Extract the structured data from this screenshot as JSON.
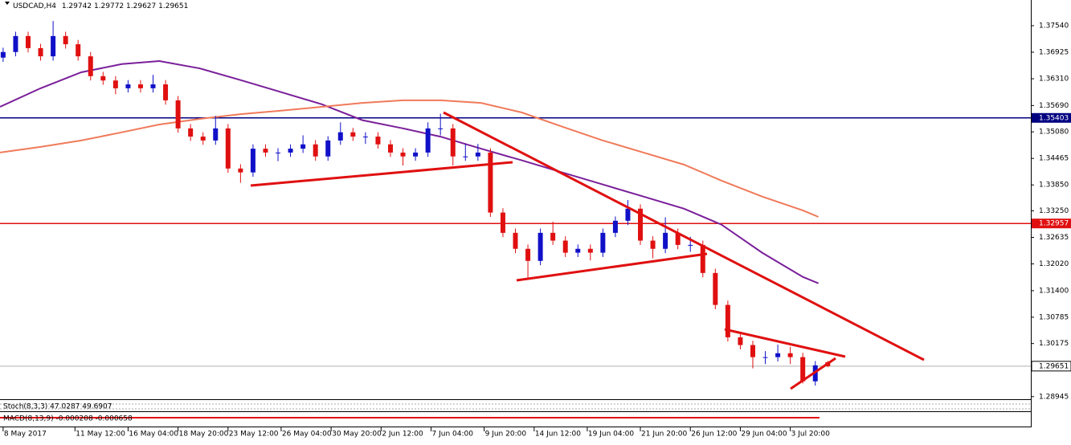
{
  "chart_data": {
    "type": "candlestick",
    "symbol": "USDCAD,H4",
    "up_color": "#1010c8",
    "down_color": "#e01010",
    "xlim": [
      0,
      330
    ],
    "ylim": [
      1.28885,
      1.38135
    ],
    "yticks": [
      {
        "value": 1.3754,
        "label": "1.37540"
      },
      1.36925,
      {
        "value": 1.3631,
        "label": "1.36310"
      },
      {
        "value": 1.3569,
        "label": "1.35690"
      },
      {
        "value": 1.3508,
        "label": "1.35080"
      },
      1.34465,
      {
        "value": 1.3385,
        "label": "1.33850"
      },
      {
        "value": 1.3325,
        "label": "1.33250"
      },
      1.32635,
      {
        "value": 1.3202,
        "label": "1.32020"
      },
      {
        "value": 1.314,
        "label": "1.31400"
      },
      1.30785,
      1.30175,
      1.28945
    ],
    "xticks": [
      {
        "value": 1,
        "label": "8 May 2017"
      },
      {
        "value": 24,
        "label": "11 May 12:00"
      },
      {
        "value": 41,
        "label": "16 May 04:00"
      },
      {
        "value": 57,
        "label": "18 May 20:00"
      },
      {
        "value": 73,
        "label": "23 May 12:00"
      },
      {
        "value": 90,
        "label": "26 May 04:00"
      },
      {
        "value": 106,
        "label": "30 May 20:00"
      },
      {
        "value": 122,
        "label": "2 Jun 12:00"
      },
      {
        "value": 138,
        "label": "7 Jun 04:00"
      },
      {
        "value": 155,
        "label": "9 Jun 20:00"
      },
      {
        "value": 171,
        "label": "14 Jun 12:00"
      },
      {
        "value": 188,
        "label": "19 Jun 04:00"
      },
      {
        "value": 205,
        "label": "21 Jun 20:00"
      },
      {
        "value": 221,
        "label": "26 Jun 12:00"
      },
      {
        "value": 237,
        "label": "29 Jun 04:00"
      },
      {
        "value": 253,
        "label": "3 Jul 20:00"
      }
    ],
    "x": [
      1,
      5,
      9,
      13,
      17,
      21,
      25,
      29,
      33,
      37,
      41,
      45,
      49,
      53,
      57,
      61,
      65,
      69,
      73,
      77,
      81,
      85,
      89,
      93,
      97,
      101,
      105,
      109,
      113,
      117,
      121,
      125,
      129,
      133,
      137,
      141,
      145,
      149,
      153,
      157,
      161,
      165,
      169,
      173,
      177,
      181,
      185,
      189,
      193,
      197,
      201,
      205,
      209,
      213,
      217,
      221,
      225,
      229,
      233,
      237,
      241,
      245,
      249,
      253,
      257,
      261,
      265
    ],
    "open": [
      1.368,
      1.3693,
      1.373,
      1.3702,
      1.3683,
      1.373,
      1.3711,
      1.3683,
      1.3637,
      1.3627,
      1.3609,
      1.3618,
      1.3609,
      1.3618,
      1.3581,
      1.3516,
      1.3497,
      1.3488,
      1.3516,
      1.3423,
      1.3414,
      1.3469,
      1.346,
      1.346,
      1.3469,
      1.3479,
      1.3451,
      1.3488,
      1.3507,
      1.3497,
      1.3497,
      1.3479,
      1.346,
      1.3451,
      1.346,
      1.3516,
      1.3516,
      1.3451,
      1.3451,
      1.346,
      1.3321,
      1.3274,
      1.3237,
      1.3209,
      1.3274,
      1.3256,
      1.3228,
      1.3237,
      1.3228,
      1.3274,
      1.3302,
      1.333,
      1.3256,
      1.3237,
      1.3274,
      1.3246,
      1.3246,
      1.3181,
      1.3107,
      1.3032,
      1.3014,
      1.2986,
      1.2986,
      1.2995,
      1.2986,
      1.293,
      1.29742
    ],
    "high": [
      1.3703,
      1.374,
      1.374,
      1.3712,
      1.3765,
      1.374,
      1.3721,
      1.3693,
      1.3647,
      1.3637,
      1.3628,
      1.3628,
      1.364,
      1.3628,
      1.3591,
      1.3526,
      1.3507,
      1.3545,
      1.3526,
      1.3433,
      1.3479,
      1.3479,
      1.347,
      1.3479,
      1.35,
      1.3489,
      1.3498,
      1.353,
      1.3517,
      1.3507,
      1.3507,
      1.3489,
      1.347,
      1.347,
      1.353,
      1.355,
      1.3526,
      1.348,
      1.348,
      1.347,
      1.3331,
      1.3284,
      1.3247,
      1.3284,
      1.33,
      1.3266,
      1.3247,
      1.3247,
      1.3284,
      1.3312,
      1.335,
      1.334,
      1.3266,
      1.331,
      1.3284,
      1.3265,
      1.3256,
      1.3191,
      1.3117,
      1.3042,
      1.3024,
      1.3,
      1.3015,
      1.301,
      1.2996,
      1.2977,
      1.29772
    ],
    "low": [
      1.367,
      1.3683,
      1.3692,
      1.3673,
      1.3673,
      1.3701,
      1.3673,
      1.3627,
      1.3617,
      1.3595,
      1.3599,
      1.3599,
      1.3599,
      1.3571,
      1.3506,
      1.3487,
      1.3478,
      1.3478,
      1.3413,
      1.339,
      1.3404,
      1.345,
      1.344,
      1.345,
      1.3459,
      1.3441,
      1.3441,
      1.3478,
      1.3487,
      1.348,
      1.3469,
      1.345,
      1.343,
      1.3441,
      1.345,
      1.35,
      1.343,
      1.3441,
      1.3441,
      1.3311,
      1.3264,
      1.3227,
      1.317,
      1.3199,
      1.3246,
      1.3218,
      1.3218,
      1.321,
      1.3218,
      1.3264,
      1.3292,
      1.3246,
      1.3215,
      1.3227,
      1.3236,
      1.323,
      1.3171,
      1.3097,
      1.3022,
      1.3004,
      1.296,
      1.297,
      1.2976,
      1.297,
      1.2925,
      1.292,
      1.29627
    ],
    "close": [
      1.3693,
      1.373,
      1.3702,
      1.3683,
      1.373,
      1.3711,
      1.3683,
      1.3637,
      1.3627,
      1.3609,
      1.3618,
      1.3609,
      1.3618,
      1.3581,
      1.3516,
      1.3497,
      1.3488,
      1.3516,
      1.3423,
      1.3414,
      1.3469,
      1.346,
      1.346,
      1.3469,
      1.3479,
      1.3451,
      1.3488,
      1.3507,
      1.3497,
      1.3497,
      1.3479,
      1.346,
      1.3451,
      1.346,
      1.3516,
      1.3516,
      1.3451,
      1.3451,
      1.346,
      1.3321,
      1.3274,
      1.3237,
      1.3209,
      1.3274,
      1.3256,
      1.3228,
      1.3237,
      1.3228,
      1.3274,
      1.3302,
      1.333,
      1.3256,
      1.3237,
      1.3274,
      1.3246,
      1.3246,
      1.3181,
      1.3107,
      1.3032,
      1.3014,
      1.2986,
      1.2986,
      1.2995,
      1.2986,
      1.293,
      1.2967,
      1.29651
    ],
    "lines": [
      {
        "color": "#7a1f9a",
        "x": [
          0,
          13,
          26,
          39,
          51,
          64,
          77,
          90,
          103,
          116,
          129,
          141,
          154,
          167,
          180,
          193,
          206,
          219,
          231,
          244,
          257,
          262
        ],
        "values": [
          1.3566,
          1.3609,
          1.3646,
          1.3665,
          1.3672,
          1.3655,
          1.3628,
          1.36,
          1.3572,
          1.3535,
          1.3516,
          1.3497,
          1.3469,
          1.3442,
          1.3414,
          1.3386,
          1.3358,
          1.333,
          1.3293,
          1.3228,
          1.3172,
          1.3157
        ]
      },
      {
        "color": "#f07a5a",
        "x": [
          0,
          13,
          26,
          39,
          51,
          64,
          77,
          90,
          103,
          116,
          129,
          141,
          154,
          167,
          180,
          193,
          206,
          219,
          231,
          244,
          257,
          262
        ],
        "values": [
          1.346,
          1.3473,
          1.3488,
          1.3507,
          1.3525,
          1.3538,
          1.3549,
          1.3557,
          1.3566,
          1.3575,
          1.3581,
          1.3581,
          1.3575,
          1.3553,
          1.352,
          1.3488,
          1.346,
          1.3432,
          1.3395,
          1.3358,
          1.3326,
          1.3311
        ]
      }
    ],
    "levels": [
      {
        "value": 1.35403,
        "color": "#000080"
      },
      {
        "value": 1.32957,
        "color": "#e01010"
      }
    ],
    "stoch_label": "Stoch(8,3,3) 47.0287 49.6907",
    "macd_label": "MACD(8,13,9) -0.000208 -0.000658"
  }
}
